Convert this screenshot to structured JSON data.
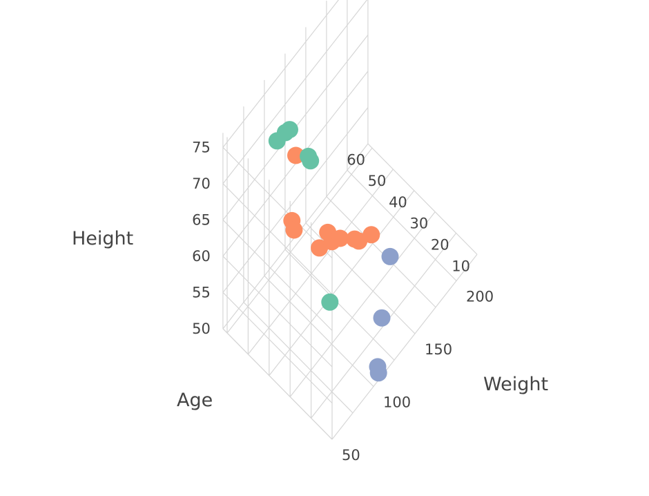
{
  "chart_data": {
    "type": "scatter",
    "projection": "3d",
    "axes": {
      "x": {
        "label": "Age",
        "ticks": [
          10,
          20,
          30,
          40,
          50,
          60
        ]
      },
      "y": {
        "label": "Weight",
        "ticks": [
          50,
          100,
          150,
          200
        ]
      },
      "z": {
        "label": "Height",
        "ticks": [
          50,
          55,
          60,
          65,
          70,
          75
        ]
      }
    },
    "grid": true,
    "legend": "none",
    "series": [
      {
        "color": "#66c2a5",
        "points": [
          {
            "age": 48,
            "weight": 95,
            "height": 75
          },
          {
            "age": 52,
            "weight": 90,
            "height": 73
          },
          {
            "age": 50,
            "weight": 95,
            "height": 74
          },
          {
            "age": 45,
            "weight": 110,
            "height": 70
          },
          {
            "age": 42,
            "weight": 105,
            "height": 71
          },
          {
            "age": 15,
            "weight": 60,
            "height": 66
          }
        ]
      },
      {
        "color": "#fc8d62",
        "points": [
          {
            "age": 47,
            "weight": 100,
            "height": 71
          },
          {
            "age": 38,
            "weight": 75,
            "height": 67
          },
          {
            "age": 39,
            "weight": 75,
            "height": 68
          },
          {
            "age": 18,
            "weight": 65,
            "height": 74
          },
          {
            "age": 20,
            "weight": 60,
            "height": 72
          },
          {
            "age": 18,
            "weight": 70,
            "height": 72
          },
          {
            "age": 18,
            "weight": 80,
            "height": 71
          },
          {
            "age": 17,
            "weight": 95,
            "height": 69
          },
          {
            "age": 17,
            "weight": 100,
            "height": 68
          },
          {
            "age": 15,
            "weight": 110,
            "height": 68
          }
        ]
      },
      {
        "color": "#8da0cb",
        "points": [
          {
            "age": 10,
            "weight": 120,
            "height": 65
          },
          {
            "age": 10,
            "weight": 110,
            "height": 58
          },
          {
            "age": 10,
            "weight": 105,
            "height": 52
          },
          {
            "age": 10,
            "weight": 106,
            "height": 51
          }
        ]
      }
    ]
  }
}
